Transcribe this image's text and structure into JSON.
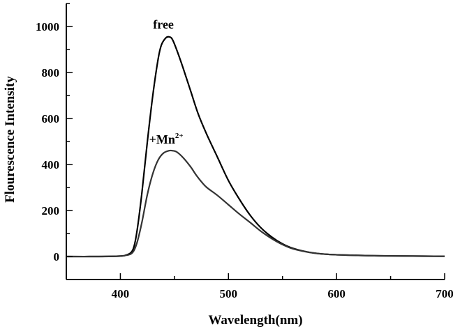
{
  "chart_data": {
    "type": "line",
    "title": "",
    "xlabel": "Wavelength(nm)",
    "ylabel": "Flourescence Intensity",
    "xlim": [
      350,
      700
    ],
    "ylim": [
      -100,
      1100
    ],
    "x_ticks": [
      400,
      500,
      600,
      700
    ],
    "y_ticks": [
      0,
      200,
      400,
      600,
      800,
      1000
    ],
    "grid": false,
    "legend": "none",
    "annotations": [
      {
        "text": "free",
        "series": 0
      },
      {
        "text": "+Mn",
        "superscript": "2+",
        "series": 1
      }
    ],
    "series": [
      {
        "name": "free",
        "color": "#000000",
        "x": [
          350,
          380,
          400,
          405,
          410,
          413,
          416,
          420,
          425,
          430,
          435,
          438,
          442,
          445,
          448,
          452,
          458,
          465,
          472,
          480,
          490,
          500,
          510,
          520,
          530,
          540,
          550,
          560,
          575,
          590,
          610,
          640,
          670,
          700
        ],
        "y": [
          0,
          0,
          2,
          6,
          18,
          50,
          130,
          280,
          500,
          700,
          860,
          920,
          950,
          955,
          945,
          900,
          820,
          720,
          620,
          530,
          430,
          330,
          250,
          180,
          125,
          85,
          55,
          35,
          18,
          10,
          6,
          3,
          2,
          1
        ]
      },
      {
        "name": "+Mn2+",
        "color": "#333333",
        "x": [
          350,
          380,
          400,
          405,
          410,
          413,
          416,
          420,
          425,
          430,
          435,
          440,
          445,
          448,
          452,
          458,
          465,
          470,
          475,
          480,
          490,
          500,
          510,
          520,
          530,
          540,
          550,
          560,
          575,
          590,
          610,
          640,
          670,
          700
        ],
        "y": [
          0,
          0,
          2,
          5,
          12,
          30,
          70,
          150,
          270,
          360,
          420,
          450,
          460,
          460,
          455,
          430,
          390,
          355,
          325,
          300,
          265,
          225,
          185,
          148,
          110,
          78,
          52,
          33,
          18,
          10,
          6,
          3,
          2,
          1
        ]
      }
    ]
  }
}
